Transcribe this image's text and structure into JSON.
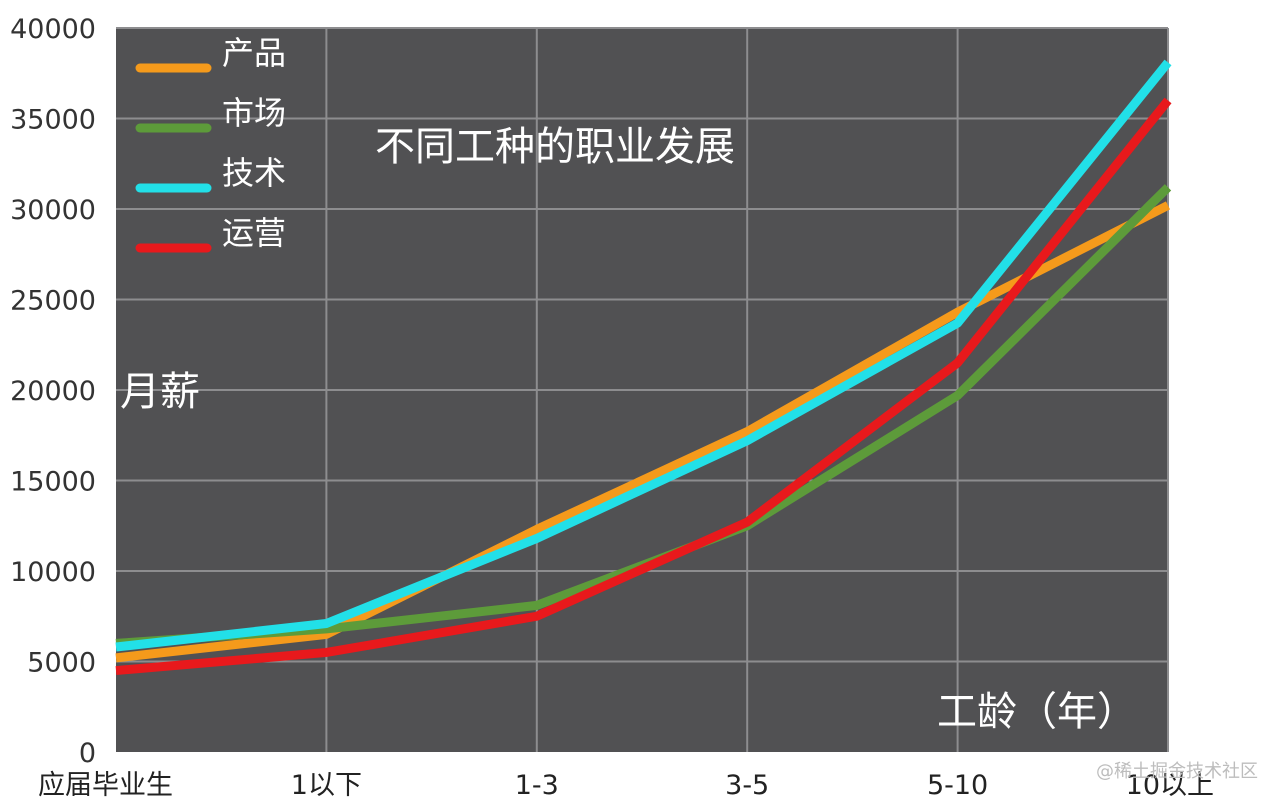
{
  "chart_data": {
    "type": "line",
    "title": "不同工种的职业发展",
    "ylabel": "月薪",
    "xlabel": "工龄（年）",
    "categories": [
      "应届毕业生",
      "1以下",
      "1-3",
      "3-5",
      "5-10",
      "10以上"
    ],
    "ylim": [
      0,
      40000
    ],
    "yticks": [
      0,
      5000,
      10000,
      15000,
      20000,
      25000,
      30000,
      35000,
      40000
    ],
    "grid": true,
    "legend_position": "top-left",
    "background": "#515153",
    "series": [
      {
        "name": "产品",
        "color": "#f59a1b",
        "values": [
          5200,
          6500,
          12300,
          17700,
          24300,
          30200
        ]
      },
      {
        "name": "市场",
        "color": "#5d9b3a",
        "values": [
          6000,
          6800,
          8100,
          12500,
          19700,
          31200
        ]
      },
      {
        "name": "技术",
        "color": "#22e0e8",
        "values": [
          5800,
          7100,
          11800,
          17200,
          23700,
          38100
        ]
      },
      {
        "name": "运营",
        "color": "#e8191c",
        "values": [
          4500,
          5500,
          7500,
          12700,
          21500,
          36000
        ]
      }
    ]
  },
  "watermark": "@稀土掘金技术社区"
}
